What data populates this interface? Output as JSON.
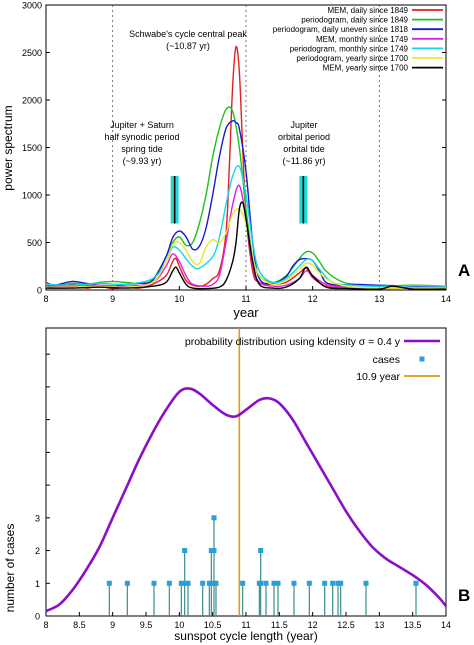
{
  "chart_data": [
    {
      "type": "line",
      "panel_label": "A",
      "xlabel": "year",
      "ylabel": "power spectrum",
      "xlim": [
        8,
        14
      ],
      "ylim": [
        0,
        3000
      ],
      "x_ticks": [
        "8",
        "9",
        "10",
        "11",
        "12",
        "13",
        "14"
      ],
      "y_ticks": [
        "0",
        "500",
        "1000",
        "1500",
        "2000",
        "2500",
        "3000"
      ],
      "grid": "dashed vertical lines at 9, 11 and 13",
      "legend": "top-right",
      "series": [
        {
          "name": "MEM, daily since 1849",
          "color": "#e02020",
          "x": [
            8.0,
            8.2,
            8.4,
            8.6,
            8.8,
            9.0,
            9.2,
            9.4,
            9.6,
            9.8,
            9.9,
            9.95,
            10.0,
            10.1,
            10.2,
            10.3,
            10.4,
            10.5,
            10.6,
            10.7,
            10.75,
            10.8,
            10.85,
            10.9,
            10.95,
            11.0,
            11.1,
            11.2,
            11.4,
            11.6,
            11.8,
            11.9,
            12.0,
            12.2,
            12.5,
            13.0,
            13.5,
            14.0
          ],
          "y": [
            80,
            30,
            60,
            20,
            40,
            15,
            30,
            20,
            60,
            150,
            300,
            330,
            250,
            100,
            50,
            40,
            60,
            120,
            200,
            600,
            1300,
            2150,
            2560,
            2300,
            1500,
            800,
            200,
            80,
            60,
            80,
            180,
            230,
            130,
            40,
            20,
            15,
            20,
            30
          ]
        },
        {
          "name": "periodogram, daily since 1849",
          "color": "#20c020",
          "x": [
            8.0,
            8.2,
            8.4,
            8.6,
            8.8,
            9.0,
            9.2,
            9.4,
            9.6,
            9.8,
            9.9,
            10.0,
            10.1,
            10.2,
            10.3,
            10.4,
            10.5,
            10.6,
            10.7,
            10.8,
            10.9,
            11.0,
            11.1,
            11.2,
            11.4,
            11.6,
            11.8,
            11.9,
            12.0,
            12.1,
            12.2,
            12.4,
            12.6,
            13.0,
            13.5,
            14.0
          ],
          "y": [
            60,
            50,
            70,
            60,
            80,
            90,
            80,
            70,
            110,
            350,
            500,
            560,
            470,
            500,
            700,
            1000,
            1400,
            1700,
            1900,
            1880,
            1500,
            850,
            350,
            150,
            80,
            150,
            330,
            400,
            390,
            300,
            200,
            100,
            60,
            40,
            50,
            40
          ]
        },
        {
          "name": "periodogram, daily uneven since 1818",
          "color": "#1a1acc",
          "x": [
            8.0,
            8.2,
            8.4,
            8.6,
            8.8,
            9.0,
            9.2,
            9.4,
            9.6,
            9.8,
            9.9,
            10.0,
            10.1,
            10.2,
            10.3,
            10.4,
            10.5,
            10.6,
            10.7,
            10.8,
            10.85,
            10.9,
            11.0,
            11.1,
            11.2,
            11.4,
            11.6,
            11.7,
            11.8,
            11.9,
            12.0,
            12.1,
            12.2,
            12.4,
            12.6,
            13.0,
            13.5,
            14.0
          ],
          "y": [
            30,
            60,
            90,
            70,
            50,
            40,
            60,
            70,
            100,
            350,
            550,
            620,
            560,
            430,
            460,
            650,
            1000,
            1400,
            1700,
            1780,
            1760,
            1700,
            1250,
            500,
            120,
            70,
            140,
            250,
            320,
            330,
            310,
            200,
            80,
            50,
            60,
            50,
            40,
            30
          ]
        },
        {
          "name": "MEM, monthly since 1749",
          "color": "#e020e0",
          "x": [
            8.0,
            8.4,
            8.8,
            9.2,
            9.6,
            9.8,
            9.9,
            10.0,
            10.1,
            10.2,
            10.4,
            10.5,
            10.6,
            10.7,
            10.8,
            10.9,
            11.0,
            11.1,
            11.2,
            11.4,
            11.6,
            11.8,
            11.9,
            12.0,
            12.2,
            12.5,
            13.0,
            13.5,
            14.0
          ],
          "y": [
            50,
            40,
            50,
            40,
            80,
            250,
            380,
            300,
            150,
            60,
            40,
            60,
            150,
            500,
            900,
            1100,
            750,
            250,
            80,
            40,
            50,
            120,
            200,
            150,
            60,
            30,
            20,
            25,
            30
          ]
        },
        {
          "name": "periodogram, monthly since 1749",
          "color": "#10d8e8",
          "x": [
            8.0,
            8.4,
            8.8,
            9.2,
            9.6,
            9.8,
            9.9,
            10.0,
            10.1,
            10.2,
            10.3,
            10.5,
            10.6,
            10.7,
            10.8,
            10.9,
            11.0,
            11.1,
            11.2,
            11.4,
            11.6,
            11.8,
            11.9,
            12.0,
            12.1,
            12.3,
            12.6,
            13.0,
            13.5,
            14.0
          ],
          "y": [
            60,
            50,
            70,
            60,
            120,
            300,
            450,
            420,
            330,
            250,
            230,
            350,
            550,
            900,
            1200,
            1300,
            1000,
            500,
            200,
            80,
            120,
            250,
            320,
            310,
            220,
            80,
            50,
            40,
            45,
            40
          ]
        },
        {
          "name": "periodogram, yearly since 1700",
          "color": "#e8e830",
          "x": [
            8.0,
            8.4,
            8.8,
            9.2,
            9.6,
            9.8,
            9.9,
            10.0,
            10.1,
            10.2,
            10.3,
            10.4,
            10.5,
            10.6,
            10.7,
            10.8,
            10.9,
            11.0,
            11.1,
            11.2,
            11.4,
            11.6,
            11.8,
            11.9,
            12.0,
            12.2,
            12.5,
            13.0,
            13.5,
            14.0
          ],
          "y": [
            30,
            30,
            40,
            30,
            80,
            300,
            480,
            500,
            420,
            300,
            280,
            450,
            530,
            500,
            600,
            800,
            850,
            700,
            350,
            150,
            60,
            100,
            220,
            280,
            260,
            120,
            40,
            20,
            20,
            20
          ]
        },
        {
          "name": "MEM, yearly since 1700",
          "color": "#000000",
          "x": [
            8.0,
            8.4,
            8.8,
            9.2,
            9.6,
            9.8,
            9.9,
            9.95,
            10.0,
            10.1,
            10.2,
            10.4,
            10.6,
            10.7,
            10.8,
            10.85,
            10.9,
            10.95,
            11.0,
            11.1,
            11.2,
            11.4,
            11.6,
            11.8,
            11.9,
            12.0,
            12.2,
            12.5,
            13.0,
            13.2,
            13.5,
            14.0
          ],
          "y": [
            20,
            20,
            30,
            20,
            40,
            80,
            200,
            240,
            180,
            60,
            20,
            15,
            30,
            100,
            300,
            500,
            850,
            920,
            750,
            300,
            60,
            20,
            30,
            120,
            240,
            150,
            30,
            15,
            10,
            40,
            10,
            10
          ]
        }
      ],
      "annotations": [
        {
          "text": [
            "Schwabe's cycle central peak",
            "(~10.87 yr)"
          ],
          "x": 10.87
        },
        {
          "text": [
            "Jupiter + Saturn",
            "half synodic period",
            "spring tide",
            "(~9.93 yr)"
          ],
          "x": 9.93
        },
        {
          "text": [
            "Jupiter",
            "orbital period",
            "orbital tide",
            "(~11.86 yr)"
          ],
          "x": 11.86
        }
      ],
      "bands": [
        {
          "x": 9.93,
          "y_from": 700,
          "y_to": 1200,
          "color": "#20d8d8"
        },
        {
          "x": 11.86,
          "y_from": 700,
          "y_to": 1200,
          "color": "#20d8d8"
        }
      ]
    },
    {
      "type": "area",
      "panel_label": "B",
      "xlabel": "sunspot cycle length (year)",
      "ylabel": "number of cases",
      "xlim": [
        8,
        14
      ],
      "ylim": [
        0,
        8.8
      ],
      "x_ticks": [
        "8",
        "8.5",
        "9",
        "9.5",
        "10",
        "10.5",
        "11",
        "11.5",
        "12",
        "12.5",
        "13",
        "13.5",
        "14"
      ],
      "y_ticks": [
        "0",
        "1",
        "2",
        "3"
      ],
      "legend": "top-right",
      "series": [
        {
          "name": "probability distribution using kdensity  σ = 0.4 y",
          "kind": "line",
          "color": "#8a10c8",
          "x": [
            8.0,
            8.2,
            8.4,
            8.6,
            8.8,
            9.0,
            9.2,
            9.4,
            9.6,
            9.8,
            10.0,
            10.15,
            10.3,
            10.5,
            10.7,
            10.85,
            11.0,
            11.2,
            11.35,
            11.5,
            11.7,
            11.9,
            12.1,
            12.3,
            12.5,
            12.7,
            12.9,
            13.1,
            13.3,
            13.5,
            13.7,
            13.9,
            14.0
          ],
          "y": [
            0.15,
            0.35,
            0.8,
            1.4,
            2.1,
            3.0,
            3.9,
            4.8,
            5.6,
            6.3,
            6.85,
            6.95,
            6.8,
            6.45,
            6.15,
            6.1,
            6.3,
            6.6,
            6.65,
            6.5,
            6.0,
            5.3,
            4.6,
            3.9,
            3.2,
            2.6,
            2.1,
            1.75,
            1.5,
            1.25,
            0.95,
            0.55,
            0.3
          ]
        },
        {
          "name": "cases",
          "kind": "stem",
          "color": "#2a9fd6",
          "stem_color": "#3a8f8f",
          "x": [
            8.95,
            9.22,
            9.62,
            9.85,
            10.03,
            10.08,
            10.13,
            10.35,
            10.45,
            10.48,
            10.52,
            10.55,
            10.95,
            11.2,
            11.22,
            11.3,
            11.42,
            11.48,
            11.72,
            11.95,
            12.18,
            12.3,
            12.38,
            12.42,
            12.8,
            13.55
          ],
          "y": [
            1,
            1,
            1,
            1,
            1,
            2,
            1,
            1,
            1,
            2,
            3,
            1,
            1,
            1,
            2,
            1,
            1,
            1,
            1,
            1,
            1,
            1,
            1,
            1,
            1,
            1
          ]
        },
        {
          "name": "10.9 year",
          "kind": "vline",
          "color": "#e09a10",
          "x": 10.9
        }
      ]
    }
  ]
}
